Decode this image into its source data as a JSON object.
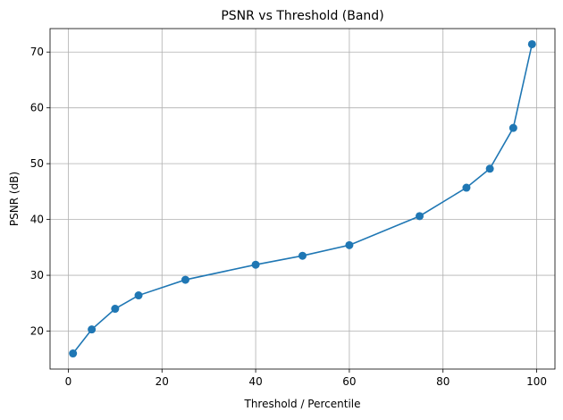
{
  "chart_data": {
    "type": "line",
    "title": "PSNR vs Threshold (Band)",
    "xlabel": "Threshold / Percentile",
    "ylabel": "PSNR (dB)",
    "xlim": [
      -3.9,
      103.9
    ],
    "ylim": [
      13.2,
      74.2
    ],
    "xticks": [
      0,
      20,
      40,
      60,
      80,
      100
    ],
    "yticks": [
      20,
      30,
      40,
      50,
      60,
      70
    ],
    "grid": true,
    "color": "#1f77b4",
    "marker": "circle",
    "series": [
      {
        "x": [
          1,
          5,
          10,
          15,
          25,
          40,
          50,
          60,
          75,
          85,
          90,
          95,
          99
        ],
        "values": [
          16.0,
          20.3,
          24.0,
          26.4,
          29.2,
          31.9,
          33.5,
          35.4,
          40.6,
          45.7,
          49.1,
          56.4,
          71.4
        ]
      }
    ]
  }
}
